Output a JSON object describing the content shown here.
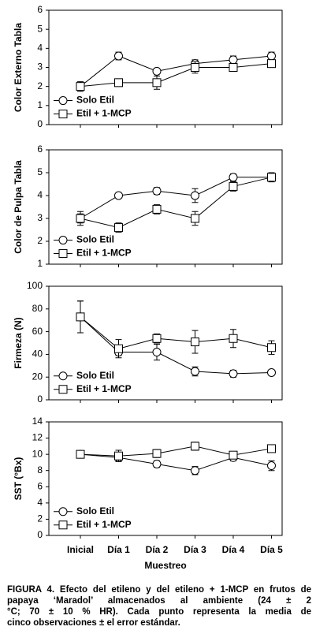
{
  "chart_data": [
    {
      "type": "line",
      "ylabel": "Color Externo Tabla",
      "ylim": [
        0,
        6
      ],
      "yticks": [
        0,
        1,
        2,
        3,
        4,
        5,
        6
      ],
      "legend": "lower left",
      "series": [
        {
          "name": "Solo Etil",
          "color": "#000000",
          "marker": "circle",
          "values": [
            2.0,
            3.6,
            2.8,
            3.2,
            3.4,
            3.6
          ],
          "errors": [
            0.25,
            0.2,
            0.15,
            0.2,
            0.2,
            0.2
          ]
        },
        {
          "name": "Etil + 1-MCP",
          "color": "#000000",
          "marker": "square",
          "values": [
            2.0,
            2.2,
            2.2,
            3.0,
            3.0,
            3.2
          ],
          "errors": [
            0.2,
            0.1,
            0.35,
            0.3,
            0.1,
            0.15
          ]
        }
      ]
    },
    {
      "type": "line",
      "ylabel": "Color de Pulpa Tabla",
      "ylim": [
        1,
        6
      ],
      "yticks": [
        1,
        2,
        3,
        4,
        5,
        6
      ],
      "legend": "lower left",
      "series": [
        {
          "name": "Solo Etil",
          "color": "#000000",
          "marker": "circle",
          "values": [
            3.0,
            4.0,
            4.2,
            4.0,
            4.8,
            4.8
          ],
          "errors": [
            0.2,
            0.05,
            0.15,
            0.3,
            0.15,
            0.15
          ]
        },
        {
          "name": "Etil + 1-MCP",
          "color": "#000000",
          "marker": "square",
          "values": [
            3.0,
            2.6,
            3.4,
            3.0,
            4.4,
            4.8
          ],
          "errors": [
            0.3,
            0.2,
            0.2,
            0.3,
            0.2,
            0.2
          ]
        }
      ]
    },
    {
      "type": "line",
      "ylabel": "Firmeza (N)",
      "ylim": [
        0,
        100
      ],
      "yticks": [
        0,
        20,
        40,
        60,
        80,
        100
      ],
      "legend": "lower left",
      "series": [
        {
          "name": "Solo Etil",
          "color": "#000000",
          "marker": "circle",
          "values": [
            73,
            42,
            42,
            25,
            23,
            24
          ],
          "errors": [
            14,
            3,
            7,
            4,
            3,
            2
          ]
        },
        {
          "name": "Etil + 1-MCP",
          "color": "#000000",
          "marker": "square",
          "values": [
            73,
            45,
            54,
            51,
            54,
            46
          ],
          "errors": [
            14,
            8,
            4,
            10,
            8,
            6
          ]
        }
      ]
    },
    {
      "type": "line",
      "ylabel": "SST (°Bx)",
      "ylim": [
        0,
        14
      ],
      "yticks": [
        0,
        2,
        4,
        6,
        8,
        10,
        12,
        14
      ],
      "legend": "lower left",
      "xlabel": "Muestreo",
      "categories": [
        "Inicial",
        "Día 1",
        "Día 2",
        "Día 3",
        "Día 4",
        "Día 5"
      ],
      "series": [
        {
          "name": "Solo Etil",
          "color": "#000000",
          "marker": "circle",
          "values": [
            10,
            9.6,
            8.8,
            8.0,
            9.6,
            8.6
          ],
          "errors": [
            0.2,
            0.4,
            0.4,
            0.5,
            0.4,
            0.6
          ]
        },
        {
          "name": "Etil + 1-MCP",
          "color": "#000000",
          "marker": "square",
          "values": [
            10,
            9.8,
            10.1,
            11.0,
            9.9,
            10.7
          ],
          "errors": [
            0.2,
            0.7,
            0.5,
            0.5,
            0.3,
            0.3
          ]
        }
      ]
    }
  ],
  "caption_lines": [
    "FIGURA 4. Efecto del etileno y del etileno + 1-MCP en frutos de",
    "papaya ‘Maradol’ almacenados al ambiente (24 ± 2",
    "°C; 70 ± 10 % HR). Cada punto representa la media de",
    "cinco observaciones ± el error estándar."
  ]
}
